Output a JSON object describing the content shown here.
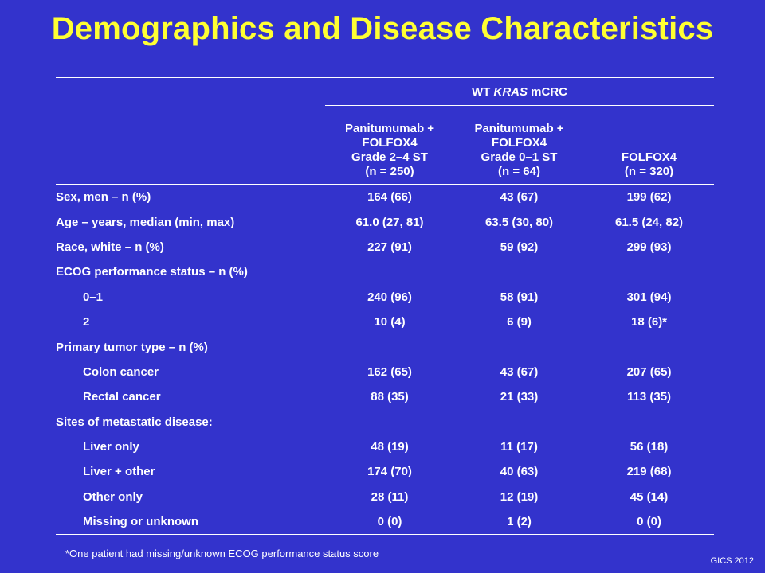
{
  "title": "Demographics and Disease Characteristics",
  "table": {
    "group_label_prefix": "WT ",
    "group_label_italic": "KRAS",
    "group_label_suffix": " mCRC",
    "columns": [
      {
        "l1": "Panitumumab +",
        "l2": "FOLFOX4",
        "l3": "Grade 2–4 ST",
        "l4": "(n = 250)"
      },
      {
        "l1": "Panitumumab +",
        "l2": "FOLFOX4",
        "l3": "Grade 0–1 ST",
        "l4": "(n = 64)"
      },
      {
        "l1": "FOLFOX4",
        "l2": "(n = 320)"
      }
    ],
    "rows": [
      {
        "label": "Sex, men – n (%)",
        "v": [
          "164 (66)",
          "43 (67)",
          "199 (62)"
        ]
      },
      {
        "label": "Age – years, median (min, max)",
        "v": [
          "61.0 (27, 81)",
          "63.5 (30, 80)",
          "61.5 (24, 82)"
        ]
      },
      {
        "label": "Race, white – n (%)",
        "v": [
          "227 (91)",
          "59 (92)",
          "299 (93)"
        ]
      },
      {
        "label": "ECOG performance status – n (%)",
        "v": [
          "",
          "",
          ""
        ]
      },
      {
        "label": "0–1",
        "v": [
          "240 (96)",
          "58 (91)",
          "301 (94)"
        ]
      },
      {
        "label": "2",
        "v": [
          "10 (4)",
          "6 (9)",
          "18 (6)*"
        ]
      },
      {
        "label": "Primary tumor type – n (%)",
        "v": [
          "",
          "",
          ""
        ]
      },
      {
        "label": "Colon cancer",
        "v": [
          "162 (65)",
          "43 (67)",
          "207 (65)"
        ]
      },
      {
        "label": "Rectal cancer",
        "v": [
          "88 (35)",
          "21 (33)",
          "113 (35)"
        ]
      },
      {
        "label": "Sites of metastatic disease:",
        "v": [
          "",
          "",
          ""
        ]
      },
      {
        "label": "Liver only",
        "v": [
          "48 (19)",
          "11 (17)",
          "56 (18)"
        ]
      },
      {
        "label": "Liver + other",
        "v": [
          "174 (70)",
          "40 (63)",
          "219 (68)"
        ]
      },
      {
        "label": "Other only",
        "v": [
          "28 (11)",
          "12 (19)",
          "45 (14)"
        ]
      },
      {
        "label": "Missing or unknown",
        "v": [
          "0 (0)",
          "1 (2)",
          "0 (0)"
        ]
      }
    ]
  },
  "footnote": "*One patient had missing/unknown ECOG performance status score",
  "source_tag": "GICS 2012"
}
